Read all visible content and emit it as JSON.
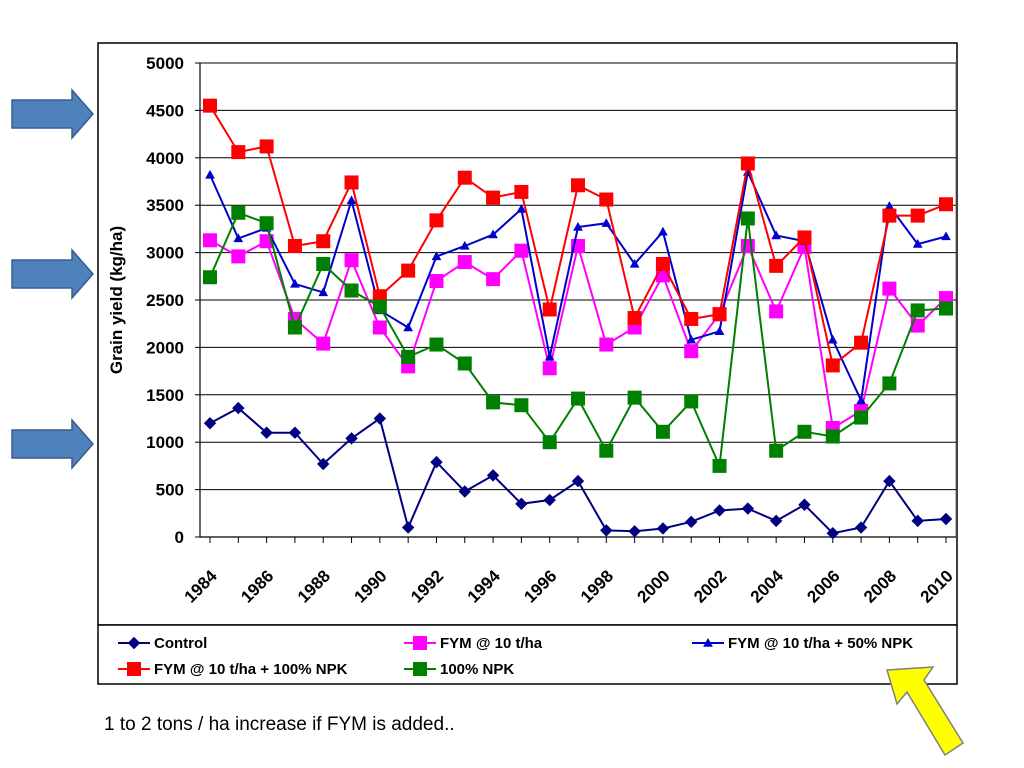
{
  "caption": "1 to 2 tons / ha increase if FYM is added..",
  "colors": {
    "side_arrows": "#4F81BD",
    "highlight_arrow": "#FFFF00"
  },
  "chart_data": {
    "type": "line",
    "ylabel": "Grain yield (kg/ha)",
    "xlabel": "",
    "ylim": [
      0,
      5000
    ],
    "ytick_step": 500,
    "yticks": [
      "0",
      "500",
      "1000",
      "1500",
      "2000",
      "2500",
      "3000",
      "3500",
      "4000",
      "4500",
      "5000"
    ],
    "xtick_labels": [
      "1984",
      "1986",
      "1988",
      "1990",
      "1992",
      "1994",
      "1996",
      "1998",
      "2000",
      "2002",
      "2004",
      "2006",
      "2008",
      "2010"
    ],
    "x": [
      1984,
      1985,
      1986,
      1987,
      1988,
      1989,
      1990,
      1991,
      1992,
      1993,
      1994,
      1995,
      1996,
      1997,
      1998,
      1999,
      2000,
      2001,
      2002,
      2003,
      2004,
      2005,
      2006,
      2007,
      2008,
      2009,
      2010
    ],
    "grid": true,
    "legend_position": "bottom",
    "series": [
      {
        "name": "Control",
        "color": "#000080",
        "marker": "diamond",
        "values": [
          1200,
          1360,
          1100,
          1100,
          770,
          1040,
          1250,
          100,
          790,
          480,
          650,
          350,
          390,
          590,
          70,
          60,
          90,
          160,
          280,
          300,
          170,
          340,
          40,
          100,
          590,
          170,
          190
        ]
      },
      {
        "name": "FYM @ 10 t/ha",
        "color": "#FF00FF",
        "marker": "square",
        "values": [
          3130,
          2960,
          3120,
          2300,
          2040,
          2920,
          2210,
          1800,
          2700,
          2900,
          2720,
          3020,
          1780,
          3070,
          2030,
          2210,
          2760,
          1960,
          2350,
          3070,
          2380,
          3060,
          1150,
          1330,
          2620,
          2230,
          2520
        ]
      },
      {
        "name": "FYM @ 10 t/ha + 50% NPK",
        "color": "#0000CC",
        "marker": "triangle",
        "values": [
          3820,
          3150,
          3260,
          2670,
          2580,
          3550,
          2390,
          2210,
          2960,
          3070,
          3190,
          3460,
          1900,
          3270,
          3310,
          2880,
          3220,
          2080,
          2170,
          3850,
          3180,
          3120,
          2080,
          1440,
          3490,
          3090,
          3170
        ]
      },
      {
        "name": "FYM @ 10 t/ha + 100% NPK",
        "color": "#FF0000",
        "marker": "square",
        "values": [
          4550,
          4060,
          4120,
          3070,
          3120,
          3740,
          2540,
          2810,
          3340,
          3790,
          3580,
          3640,
          2400,
          3710,
          3560,
          2310,
          2880,
          2300,
          2350,
          3940,
          2860,
          3160,
          1810,
          2050,
          3390,
          3390,
          3510
        ]
      },
      {
        "name": "100% NPK",
        "color": "#008000",
        "marker": "square",
        "values": [
          2740,
          3420,
          3310,
          2210,
          2880,
          2600,
          2430,
          1900,
          2030,
          1830,
          1420,
          1390,
          1000,
          1460,
          910,
          1470,
          1110,
          1430,
          750,
          3360,
          910,
          1110,
          1060,
          1260,
          1620,
          2390,
          2410
        ]
      }
    ]
  }
}
